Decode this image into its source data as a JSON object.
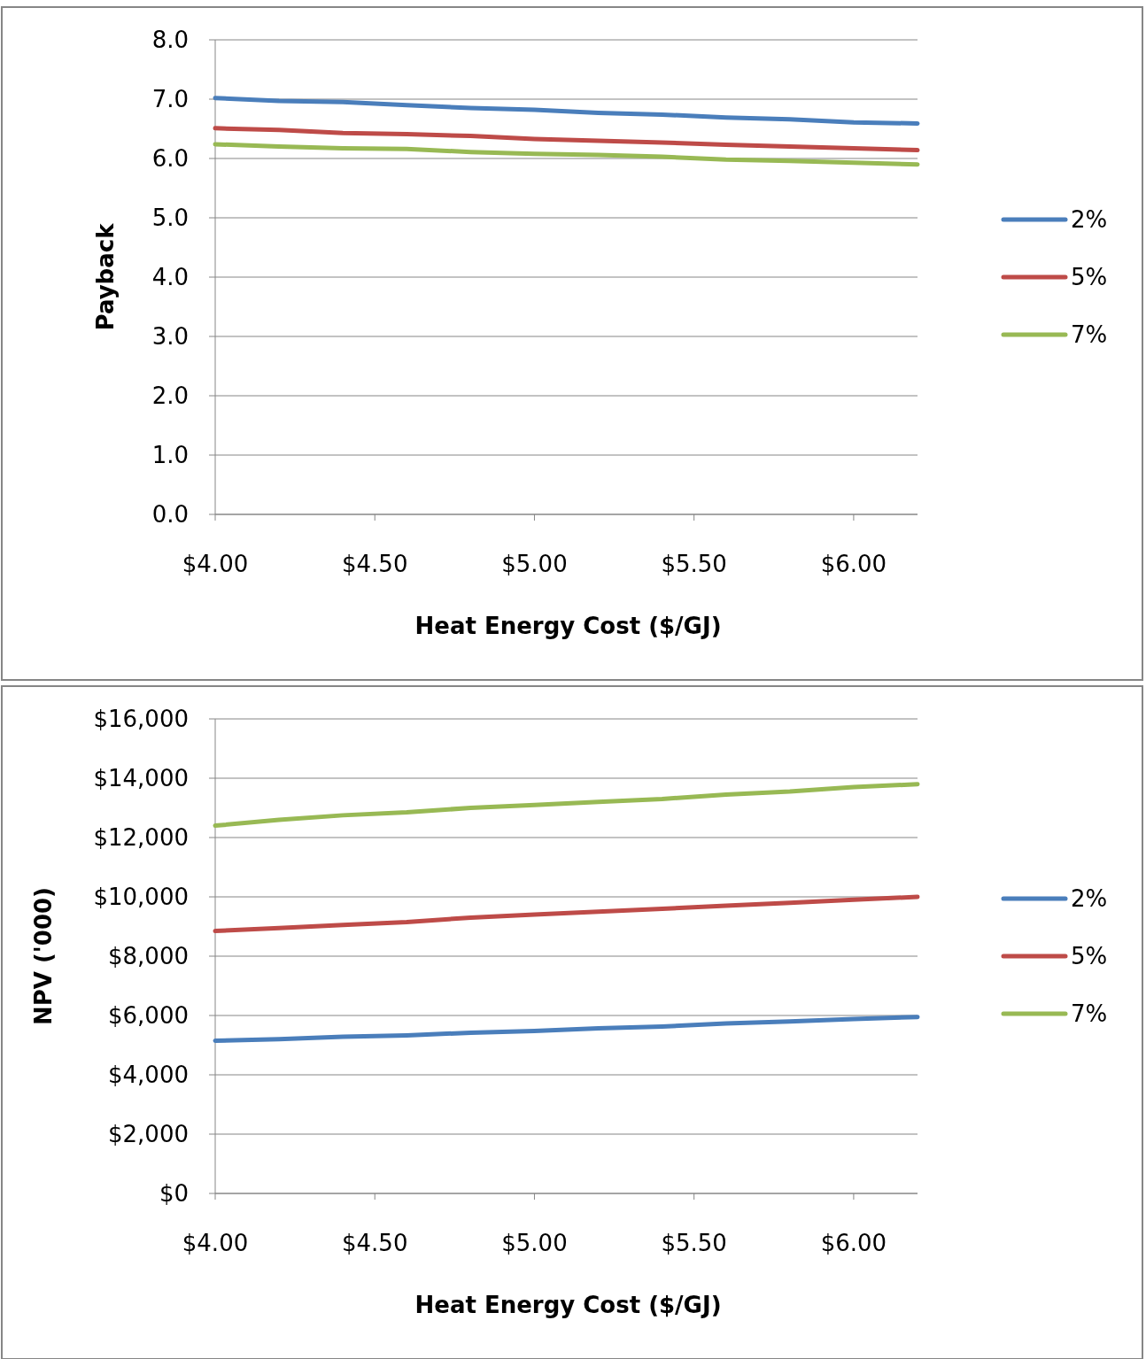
{
  "chart_data": [
    {
      "type": "line",
      "xlabel": "Heat Energy Cost ($/GJ)",
      "ylabel": "Payback",
      "x": [
        4.0,
        4.2,
        4.4,
        4.6,
        4.8,
        5.0,
        5.2,
        5.4,
        5.6,
        5.8,
        6.0,
        6.2
      ],
      "series": [
        {
          "name": "2%",
          "color": "#4a7ebb",
          "values": [
            7.02,
            6.97,
            6.95,
            6.9,
            6.85,
            6.82,
            6.77,
            6.74,
            6.69,
            6.66,
            6.61,
            6.59
          ]
        },
        {
          "name": "5%",
          "color": "#be4b48",
          "values": [
            6.51,
            6.48,
            6.43,
            6.41,
            6.38,
            6.33,
            6.3,
            6.27,
            6.23,
            6.2,
            6.17,
            6.14
          ]
        },
        {
          "name": "7%",
          "color": "#98b954",
          "values": [
            6.24,
            6.2,
            6.17,
            6.16,
            6.11,
            6.08,
            6.06,
            6.03,
            5.98,
            5.96,
            5.93,
            5.9
          ]
        }
      ],
      "xlim": [
        4,
        6.2
      ],
      "xticks": [
        {
          "value": 4,
          "label": "$4.00"
        },
        {
          "value": 4.5,
          "label": "$4.50"
        },
        {
          "value": 5,
          "label": "$5.00"
        },
        {
          "value": 5.5,
          "label": "$5.50"
        },
        {
          "value": 6,
          "label": "$6.00"
        }
      ],
      "ylim": [
        0,
        8
      ],
      "yticks": [
        {
          "value": 0,
          "label": "0.0"
        },
        {
          "value": 1,
          "label": "1.0"
        },
        {
          "value": 2,
          "label": "2.0"
        },
        {
          "value": 3,
          "label": "3.0"
        },
        {
          "value": 4,
          "label": "4.0"
        },
        {
          "value": 5,
          "label": "5.0"
        },
        {
          "value": 6,
          "label": "6.0"
        },
        {
          "value": 7,
          "label": "7.0"
        },
        {
          "value": 8,
          "label": "8.0"
        }
      ],
      "grid": "y",
      "legend": "right"
    },
    {
      "type": "line",
      "xlabel": "Heat Energy Cost ($/GJ)",
      "ylabel": "NPV ('000)",
      "x": [
        4.0,
        4.2,
        4.4,
        4.6,
        4.8,
        5.0,
        5.2,
        5.4,
        5.6,
        5.8,
        6.0,
        6.2
      ],
      "series": [
        {
          "name": "2%",
          "color": "#4a7ebb",
          "values": [
            5150,
            5200,
            5280,
            5330,
            5420,
            5480,
            5570,
            5630,
            5730,
            5800,
            5880,
            5950
          ]
        },
        {
          "name": "5%",
          "color": "#be4b48",
          "values": [
            8850,
            8950,
            9050,
            9150,
            9300,
            9400,
            9500,
            9600,
            9700,
            9800,
            9900,
            10000
          ]
        },
        {
          "name": "7%",
          "color": "#98b954",
          "values": [
            12400,
            12600,
            12750,
            12850,
            13000,
            13100,
            13200,
            13300,
            13450,
            13550,
            13700,
            13800
          ]
        }
      ],
      "xlim": [
        4,
        6.2
      ],
      "xticks": [
        {
          "value": 4,
          "label": "$4.00"
        },
        {
          "value": 4.5,
          "label": "$4.50"
        },
        {
          "value": 5,
          "label": "$5.00"
        },
        {
          "value": 5.5,
          "label": "$5.50"
        },
        {
          "value": 6,
          "label": "$6.00"
        }
      ],
      "ylim": [
        0,
        16000
      ],
      "yticks": [
        {
          "value": 0,
          "label": "$0"
        },
        {
          "value": 2000,
          "label": "$2,000"
        },
        {
          "value": 4000,
          "label": "$4,000"
        },
        {
          "value": 6000,
          "label": "$6,000"
        },
        {
          "value": 8000,
          "label": "$8,000"
        },
        {
          "value": 10000,
          "label": "$10,000"
        },
        {
          "value": 12000,
          "label": "$12,000"
        },
        {
          "value": 14000,
          "label": "$14,000"
        },
        {
          "value": 16000,
          "label": "$16,000"
        }
      ],
      "grid": "y",
      "legend": "right"
    }
  ]
}
